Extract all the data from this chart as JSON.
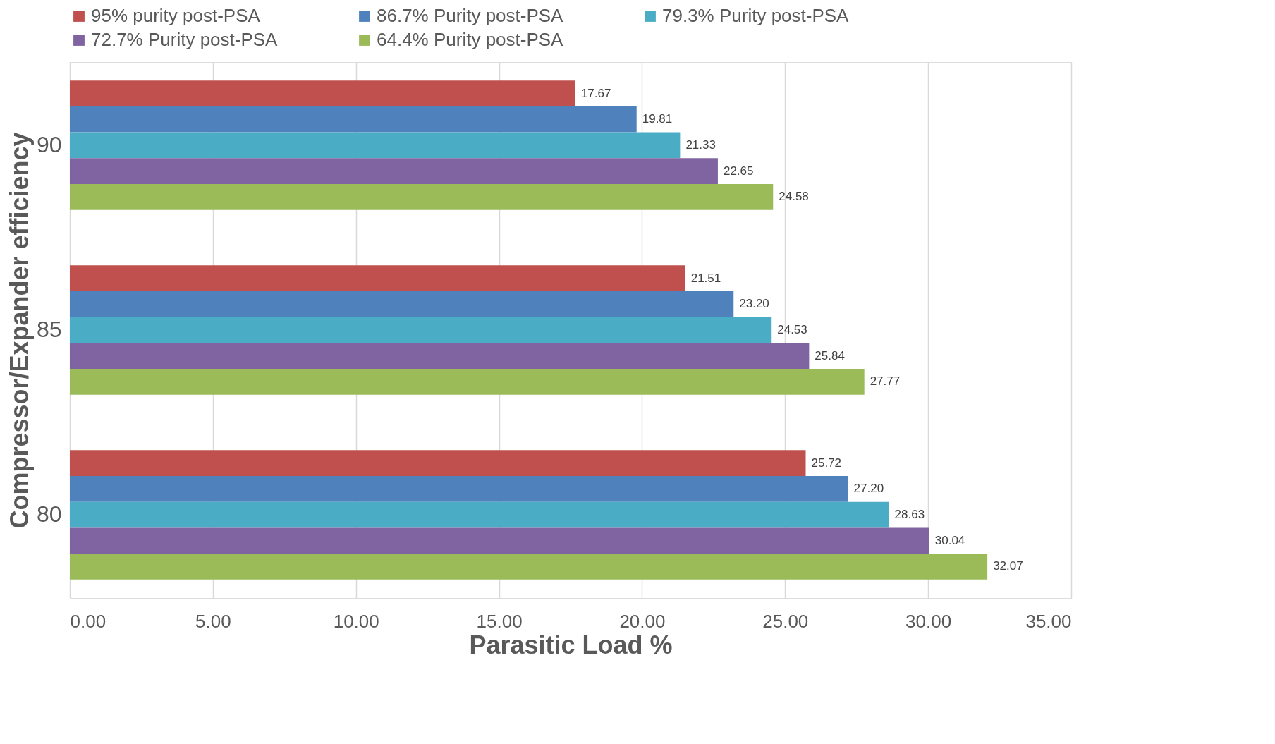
{
  "chart_data": {
    "type": "bar",
    "orientation": "horizontal",
    "xlabel": "Parasitic Load %",
    "ylabel": "Compressor/Expander efficiency",
    "categories": [
      "90",
      "85",
      "80"
    ],
    "series": [
      {
        "name": "95% purity post-PSA",
        "color": "#c0504d",
        "values": [
          17.67,
          21.51,
          25.72
        ],
        "value_labels": [
          "17.67",
          "21.51",
          "25.72"
        ]
      },
      {
        "name": "86.7% Purity post-PSA",
        "color": "#4f81bd",
        "values": [
          19.81,
          23.2,
          27.2
        ],
        "value_labels": [
          "19.81",
          "23.20",
          "27.20"
        ]
      },
      {
        "name": "79.3% Purity post-PSA",
        "color": "#4bacc6",
        "values": [
          21.33,
          24.53,
          28.63
        ],
        "value_labels": [
          "21.33",
          "24.53",
          "28.63"
        ]
      },
      {
        "name": "72.7% Purity post-PSA",
        "color": "#8064a2",
        "values": [
          22.65,
          25.84,
          30.04
        ],
        "value_labels": [
          "22.65",
          "25.84",
          "30.04"
        ]
      },
      {
        "name": "64.4% Purity post-PSA",
        "color": "#9bbb59",
        "values": [
          24.58,
          27.77,
          32.07
        ],
        "value_labels": [
          "24.58",
          "27.77",
          "32.07"
        ]
      }
    ],
    "xlim": [
      0,
      35
    ],
    "xticks": [
      {
        "value": 0,
        "label": "0.00"
      },
      {
        "value": 5,
        "label": "5.00"
      },
      {
        "value": 10,
        "label": "10.00"
      },
      {
        "value": 15,
        "label": "15.00"
      },
      {
        "value": 20,
        "label": "20.00"
      },
      {
        "value": 25,
        "label": "25.00"
      },
      {
        "value": 30,
        "label": "30.00"
      },
      {
        "value": 35,
        "label": "35.00"
      }
    ],
    "grid": "x",
    "legend": "top"
  }
}
